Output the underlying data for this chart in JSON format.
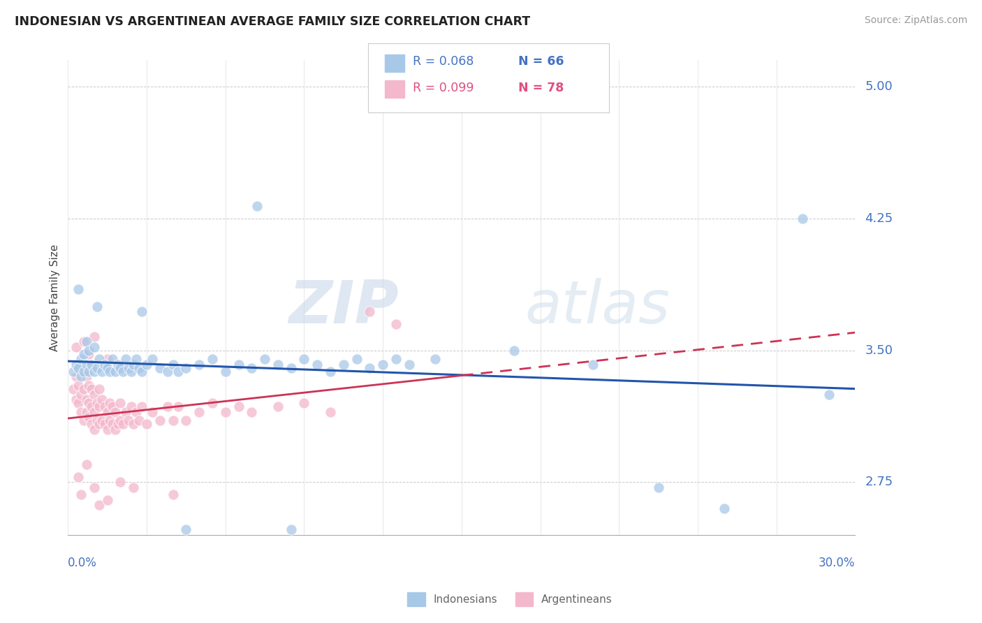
{
  "title": "INDONESIAN VS ARGENTINEAN AVERAGE FAMILY SIZE CORRELATION CHART",
  "source": "Source: ZipAtlas.com",
  "ylabel": "Average Family Size",
  "xlim": [
    0.0,
    30.0
  ],
  "ylim": [
    2.45,
    5.15
  ],
  "yticks": [
    2.75,
    3.5,
    4.25,
    5.0
  ],
  "ytick_color": "#4472c4",
  "grid_color": "#bbbbbb",
  "background_color": "#ffffff",
  "watermark_zip": "ZIP",
  "watermark_atlas": "atlas",
  "indonesian_color": "#a8c8e8",
  "argentinean_color": "#f4b8cc",
  "trend_indonesian_color": "#2255aa",
  "trend_argentinean_color": "#cc3355",
  "indonesian_points": [
    [
      0.2,
      3.38
    ],
    [
      0.3,
      3.42
    ],
    [
      0.4,
      3.4
    ],
    [
      0.5,
      3.45
    ],
    [
      0.5,
      3.35
    ],
    [
      0.6,
      3.38
    ],
    [
      0.6,
      3.48
    ],
    [
      0.7,
      3.42
    ],
    [
      0.7,
      3.55
    ],
    [
      0.8,
      3.38
    ],
    [
      0.8,
      3.5
    ],
    [
      0.9,
      3.42
    ],
    [
      1.0,
      3.38
    ],
    [
      1.0,
      3.52
    ],
    [
      1.1,
      3.75
    ],
    [
      1.1,
      3.4
    ],
    [
      1.2,
      3.45
    ],
    [
      1.3,
      3.38
    ],
    [
      1.4,
      3.42
    ],
    [
      1.5,
      3.4
    ],
    [
      1.6,
      3.38
    ],
    [
      1.7,
      3.45
    ],
    [
      1.8,
      3.38
    ],
    [
      1.9,
      3.42
    ],
    [
      2.0,
      3.4
    ],
    [
      2.1,
      3.38
    ],
    [
      2.2,
      3.45
    ],
    [
      2.3,
      3.4
    ],
    [
      2.4,
      3.38
    ],
    [
      2.5,
      3.42
    ],
    [
      2.6,
      3.45
    ],
    [
      2.7,
      3.4
    ],
    [
      2.8,
      3.38
    ],
    [
      3.0,
      3.42
    ],
    [
      3.2,
      3.45
    ],
    [
      3.5,
      3.4
    ],
    [
      3.8,
      3.38
    ],
    [
      4.0,
      3.42
    ],
    [
      4.2,
      3.38
    ],
    [
      4.5,
      3.4
    ],
    [
      5.0,
      3.42
    ],
    [
      5.5,
      3.45
    ],
    [
      6.0,
      3.38
    ],
    [
      6.5,
      3.42
    ],
    [
      7.0,
      3.4
    ],
    [
      7.5,
      3.45
    ],
    [
      8.0,
      3.42
    ],
    [
      8.5,
      3.4
    ],
    [
      9.0,
      3.45
    ],
    [
      9.5,
      3.42
    ],
    [
      10.0,
      3.38
    ],
    [
      10.5,
      3.42
    ],
    [
      11.0,
      3.45
    ],
    [
      11.5,
      3.4
    ],
    [
      12.0,
      3.42
    ],
    [
      12.5,
      3.45
    ],
    [
      13.0,
      3.42
    ],
    [
      14.0,
      3.45
    ],
    [
      0.4,
      3.85
    ],
    [
      2.8,
      3.72
    ],
    [
      7.2,
      4.32
    ],
    [
      17.0,
      3.5
    ],
    [
      20.0,
      3.42
    ],
    [
      22.5,
      2.72
    ],
    [
      25.0,
      2.6
    ],
    [
      28.0,
      4.25
    ],
    [
      29.0,
      3.25
    ],
    [
      4.5,
      2.48
    ],
    [
      8.5,
      2.48
    ]
  ],
  "argentinean_points": [
    [
      0.2,
      3.28
    ],
    [
      0.3,
      3.22
    ],
    [
      0.3,
      3.35
    ],
    [
      0.4,
      3.2
    ],
    [
      0.4,
      3.3
    ],
    [
      0.5,
      3.15
    ],
    [
      0.5,
      3.25
    ],
    [
      0.5,
      3.38
    ],
    [
      0.6,
      3.1
    ],
    [
      0.6,
      3.28
    ],
    [
      0.7,
      3.15
    ],
    [
      0.7,
      3.22
    ],
    [
      0.7,
      3.35
    ],
    [
      0.8,
      3.12
    ],
    [
      0.8,
      3.2
    ],
    [
      0.8,
      3.3
    ],
    [
      0.9,
      3.08
    ],
    [
      0.9,
      3.18
    ],
    [
      0.9,
      3.28
    ],
    [
      1.0,
      3.05
    ],
    [
      1.0,
      3.15
    ],
    [
      1.0,
      3.25
    ],
    [
      1.1,
      3.1
    ],
    [
      1.1,
      3.2
    ],
    [
      1.2,
      3.08
    ],
    [
      1.2,
      3.18
    ],
    [
      1.2,
      3.28
    ],
    [
      1.3,
      3.1
    ],
    [
      1.3,
      3.22
    ],
    [
      1.4,
      3.08
    ],
    [
      1.4,
      3.18
    ],
    [
      1.5,
      3.05
    ],
    [
      1.5,
      3.15
    ],
    [
      1.6,
      3.1
    ],
    [
      1.6,
      3.2
    ],
    [
      1.7,
      3.08
    ],
    [
      1.7,
      3.18
    ],
    [
      1.8,
      3.05
    ],
    [
      1.8,
      3.15
    ],
    [
      1.9,
      3.08
    ],
    [
      2.0,
      3.1
    ],
    [
      2.0,
      3.2
    ],
    [
      2.1,
      3.08
    ],
    [
      2.2,
      3.15
    ],
    [
      2.3,
      3.1
    ],
    [
      2.4,
      3.18
    ],
    [
      2.5,
      3.08
    ],
    [
      2.6,
      3.15
    ],
    [
      2.7,
      3.1
    ],
    [
      2.8,
      3.18
    ],
    [
      3.0,
      3.08
    ],
    [
      3.2,
      3.15
    ],
    [
      3.5,
      3.1
    ],
    [
      3.8,
      3.18
    ],
    [
      4.0,
      3.1
    ],
    [
      4.2,
      3.18
    ],
    [
      4.5,
      3.1
    ],
    [
      5.0,
      3.15
    ],
    [
      5.5,
      3.2
    ],
    [
      6.0,
      3.15
    ],
    [
      6.5,
      3.18
    ],
    [
      7.0,
      3.15
    ],
    [
      8.0,
      3.18
    ],
    [
      9.0,
      3.2
    ],
    [
      10.0,
      3.15
    ],
    [
      0.3,
      3.52
    ],
    [
      0.6,
      3.55
    ],
    [
      0.8,
      3.48
    ],
    [
      1.0,
      3.58
    ],
    [
      1.5,
      3.45
    ],
    [
      0.4,
      2.78
    ],
    [
      0.5,
      2.68
    ],
    [
      0.7,
      2.85
    ],
    [
      1.0,
      2.72
    ],
    [
      1.2,
      2.62
    ],
    [
      1.5,
      2.65
    ],
    [
      2.0,
      2.75
    ],
    [
      2.5,
      2.72
    ],
    [
      4.0,
      2.68
    ],
    [
      11.5,
      3.72
    ],
    [
      12.5,
      3.65
    ]
  ]
}
